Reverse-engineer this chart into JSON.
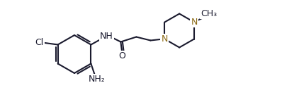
{
  "bg_color": "#ffffff",
  "bond_color": "#1a1a2e",
  "atom_colors": {
    "C": "#1a1a2e",
    "N": "#8B6914",
    "O": "#1a1a2e",
    "Cl": "#1a1a2e",
    "H": "#1a1a2e",
    "NH": "#1a1a2e",
    "NH2": "#1a1a2e"
  },
  "line_width": 1.5,
  "font_size": 9
}
